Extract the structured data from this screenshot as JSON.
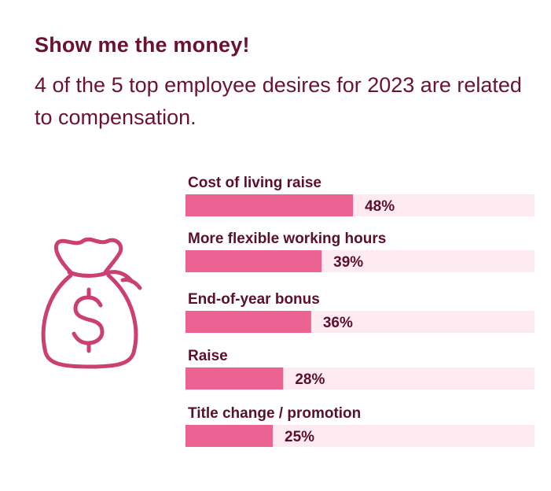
{
  "colors": {
    "title": "#6b1233",
    "bar": "#ec6393",
    "track": "#fdebf1",
    "icon": "#cb3f72"
  },
  "icons": {
    "illustration": "money-bag-icon"
  },
  "chart_data": {
    "type": "bar",
    "orientation": "horizontal",
    "title": "Show me the money!",
    "subtitle": "4 of the 5 top employee desires for 2023 are related to compensation.",
    "categories": [
      "Cost of living raise",
      "More flexible working hours",
      "End-of-year bonus",
      "Raise",
      "Title change / promotion"
    ],
    "values": [
      48,
      39,
      36,
      28,
      25
    ],
    "value_labels": [
      "48%",
      "39%",
      "36%",
      "28%",
      "25%"
    ],
    "xlim": [
      0,
      100
    ],
    "grid": false,
    "legend": "none"
  }
}
